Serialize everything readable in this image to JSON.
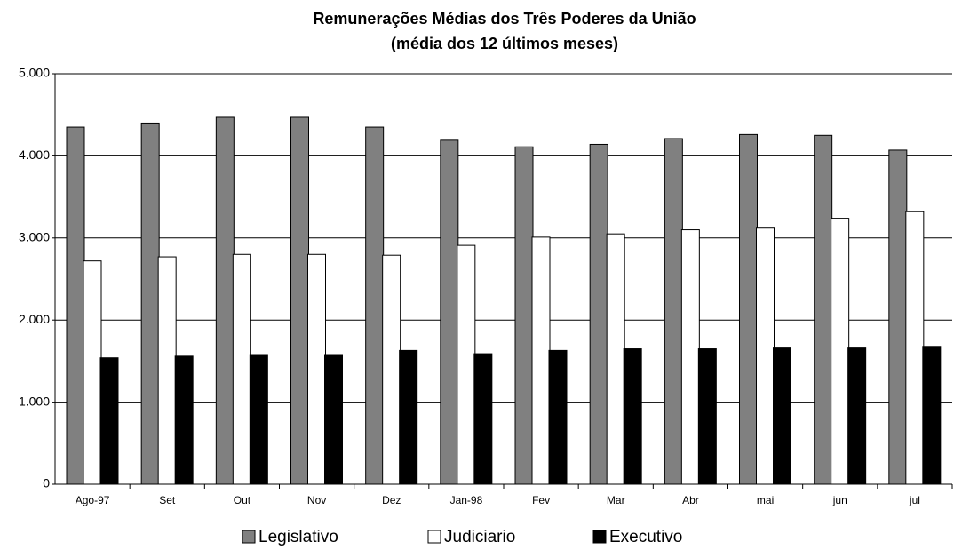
{
  "chart_data": {
    "type": "bar",
    "title": "Remunerações Médias dos Três Poderes da União",
    "subtitle": "(média dos 12 últimos meses)",
    "categories": [
      "Ago-97",
      "Set",
      "Out",
      "Nov",
      "Dez",
      "Jan-98",
      "Fev",
      "Mar",
      "Abr",
      "mai",
      "jun",
      "jul"
    ],
    "series": [
      {
        "name": "Legislativo",
        "color": "#808080",
        "values": [
          4350,
          4400,
          4470,
          4470,
          4350,
          4190,
          4110,
          4140,
          4210,
          4260,
          4250,
          4070
        ]
      },
      {
        "name": "Judiciario",
        "color": "#ffffff",
        "values": [
          2720,
          2770,
          2800,
          2800,
          2790,
          2910,
          3010,
          3050,
          3100,
          3120,
          3240,
          3320
        ]
      },
      {
        "name": "Executivo",
        "color": "#000000",
        "values": [
          1540,
          1560,
          1580,
          1580,
          1630,
          1590,
          1630,
          1650,
          1650,
          1660,
          1660,
          1680
        ]
      }
    ],
    "ylim": [
      0,
      5000
    ],
    "yticks": [
      0,
      {
        "value": 1000,
        "label": "1.000"
      },
      {
        "value": 2000,
        "label": "2.000"
      },
      {
        "value": 3000,
        "label": "3.000"
      },
      {
        "value": 4000,
        "label": "4.000"
      },
      {
        "value": 5000,
        "label": "5.000"
      }
    ],
    "grid": true,
    "legend": "bottom"
  }
}
